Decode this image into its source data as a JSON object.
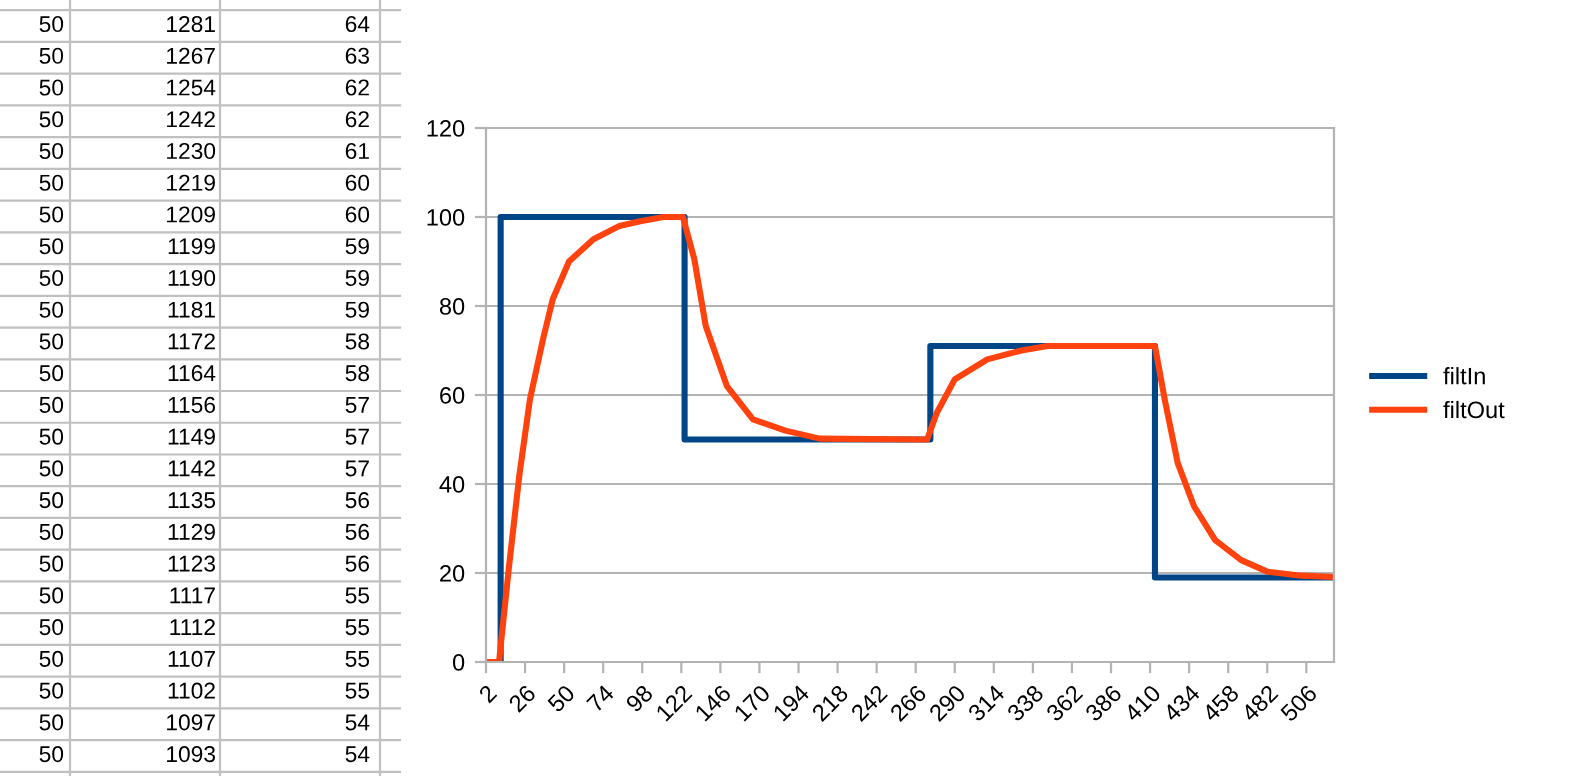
{
  "chart_data": {
    "type": "line",
    "xlim": [
      2,
      523
    ],
    "ylim": [
      0,
      120
    ],
    "xticks": [
      2,
      26,
      50,
      74,
      98,
      122,
      146,
      170,
      194,
      218,
      242,
      266,
      290,
      314,
      338,
      362,
      386,
      410,
      434,
      458,
      482,
      506
    ],
    "yticks": [
      0,
      20,
      40,
      60,
      80,
      100,
      120
    ],
    "grid": "y",
    "legend": "right",
    "series": [
      {
        "name": "filtIn",
        "color": "#004586",
        "x": [
          2,
          11,
          11,
          124,
          124,
          275,
          275,
          413,
          413,
          523
        ],
        "values": [
          0,
          0,
          100,
          100,
          50,
          50,
          71,
          71,
          19,
          19
        ]
      },
      {
        "name": "filtOut",
        "color": "#ff420e",
        "x": [
          2,
          10,
          16,
          22.5,
          29,
          37,
          43,
          53,
          68,
          84,
          96,
          111,
          123,
          130,
          137,
          150,
          166,
          186,
          207,
          273,
          279,
          290,
          310,
          331,
          347,
          413,
          419,
          427,
          437,
          450,
          466,
          482,
          503,
          523
        ],
        "values": [
          0,
          0,
          21,
          42,
          59,
          72.5,
          81.5,
          90,
          95,
          98,
          99,
          100,
          100,
          90.5,
          75.5,
          62,
          54.5,
          52,
          50.2,
          50,
          56,
          63.5,
          68,
          70,
          71,
          71,
          59,
          44.7,
          35,
          27.4,
          22.9,
          20.3,
          19.4,
          19.1
        ]
      }
    ],
    "annotations": [
      "50",
      "1281",
      "64",
      "50",
      "1267",
      "63",
      "50",
      "1254",
      "62",
      "50",
      "1242",
      "62",
      "50",
      "1230",
      "61",
      "50",
      "1219",
      "60",
      "50",
      "1209",
      "60",
      "50",
      "1199",
      "59",
      "50",
      "1190",
      "59",
      "50",
      "1181",
      "59",
      "50",
      "1172",
      "58",
      "50",
      "1164",
      "58",
      "50",
      "1156",
      "57",
      "50",
      "1149",
      "57",
      "50",
      "1142",
      "57",
      "50",
      "1135",
      "56",
      "50",
      "1129",
      "56",
      "50",
      "1123",
      "56",
      "50",
      "1117",
      "55",
      "50",
      "1112",
      "55",
      "50",
      "1107",
      "55",
      "50",
      "1102",
      "55",
      "50",
      "1097",
      "54",
      "50",
      "1093",
      "54"
    ]
  }
}
